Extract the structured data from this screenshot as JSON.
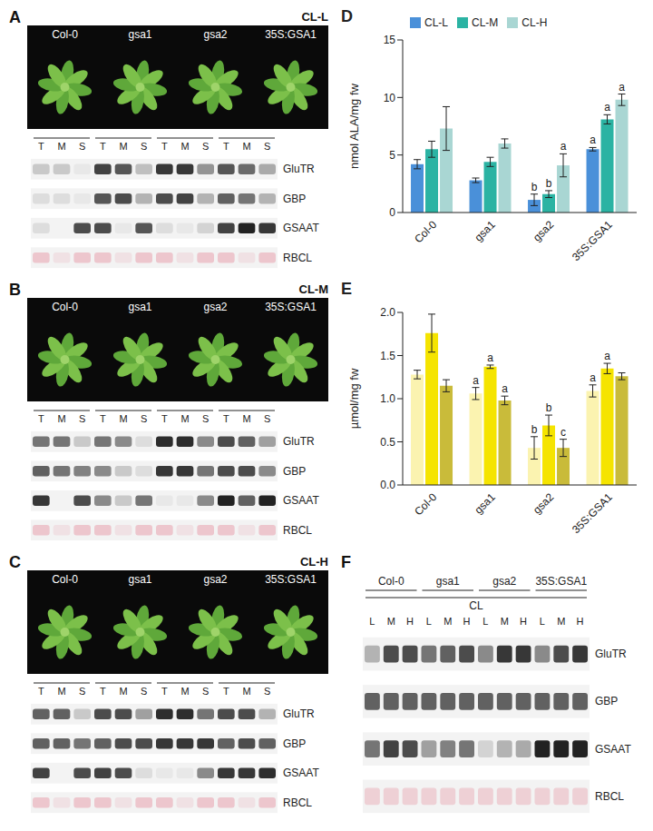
{
  "chart_data": [
    {
      "type": "bar",
      "annotations": [
        "D"
      ],
      "y_label": "nmol ALA/mg fw",
      "categories": [
        "Col-0",
        "gsa1",
        "gsa2",
        "35S:GSA1"
      ],
      "series": [
        {
          "name": "CL-L",
          "color": "#4a90d9",
          "values": [
            4.2,
            2.8,
            1.1,
            5.5
          ],
          "errors": [
            0.4,
            0.2,
            0.5,
            0.15
          ],
          "letters": [
            null,
            null,
            "b",
            "a"
          ]
        },
        {
          "name": "CL-M",
          "color": "#2bb3a3",
          "values": [
            5.5,
            4.4,
            1.6,
            8.1
          ],
          "errors": [
            0.7,
            0.4,
            0.3,
            0.4
          ],
          "letters": [
            null,
            null,
            "b",
            "a"
          ]
        },
        {
          "name": "CL-H",
          "color": "#a9d6d3",
          "values": [
            7.3,
            6.0,
            4.1,
            9.8
          ],
          "errors": [
            1.9,
            0.4,
            1.0,
            0.5
          ],
          "letters": [
            null,
            null,
            "a",
            "a"
          ]
        }
      ],
      "ylim": [
        0,
        15
      ],
      "yticks": [
        0,
        5,
        10,
        15
      ],
      "legend": "upper left"
    },
    {
      "type": "bar",
      "annotations": [
        "E"
      ],
      "y_label": "µmol/mg fw",
      "categories": [
        "Col-0",
        "gsa1",
        "gsa2",
        "35S:GSA1"
      ],
      "series": [
        {
          "name": "CL-L",
          "color": "#fbf3b0",
          "values": [
            1.28,
            1.06,
            0.43,
            1.09
          ],
          "errors": [
            0.05,
            0.07,
            0.13,
            0.07
          ],
          "letters": [
            null,
            "a",
            "b",
            "a"
          ]
        },
        {
          "name": "CL-M",
          "color": "#f5e400",
          "values": [
            1.76,
            1.37,
            0.69,
            1.35
          ],
          "errors": [
            0.22,
            0.02,
            0.12,
            0.06
          ],
          "letters": [
            null,
            "a",
            "b",
            "a"
          ]
        },
        {
          "name": "CL-H",
          "color": "#c9bb3a",
          "values": [
            1.15,
            0.98,
            0.43,
            1.26
          ],
          "errors": [
            0.07,
            0.05,
            0.1,
            0.04
          ],
          "letters": [
            null,
            "a",
            "c",
            null
          ]
        }
      ],
      "ylim": [
        0,
        2
      ],
      "yticks": [
        {
          "value": 0,
          "label": "0.0"
        },
        0.5,
        {
          "value": 1,
          "label": "1.0"
        },
        1.5,
        {
          "value": 2,
          "label": "2.0"
        }
      ]
    }
  ],
  "blots": [
    {
      "panel": "A",
      "title": "CL-L",
      "photo": true,
      "genotypes": [
        "Col-0",
        "gsa1",
        "gsa2",
        "35S:GSA1"
      ],
      "lanes": [
        "T",
        "M",
        "S"
      ],
      "rows": [
        {
          "name": "GluTR",
          "color": "#222222",
          "signal": [
            0.2,
            0.2,
            0.05,
            0.85,
            0.75,
            0.25,
            0.9,
            0.9,
            0.45,
            0.75,
            0.65,
            0.35
          ]
        },
        {
          "name": "GBP",
          "color": "#222222",
          "signal": [
            0.1,
            0.1,
            0.05,
            0.75,
            0.8,
            0.3,
            0.8,
            0.85,
            0.3,
            0.7,
            0.6,
            0.3
          ]
        },
        {
          "name": "GSAAT",
          "color": "#222222",
          "signal": [
            0.1,
            0,
            0.8,
            0.8,
            0.05,
            0.75,
            0.1,
            0.05,
            0.15,
            0.85,
            1,
            0.9
          ]
        },
        {
          "name": "RBCL",
          "color": "#e79aa8",
          "signal": [
            0.5,
            0.2,
            0.5,
            0.5,
            0.2,
            0.5,
            0.5,
            0.2,
            0.5,
            0.5,
            0.2,
            0.5
          ]
        }
      ]
    },
    {
      "panel": "B",
      "title": "CL-M",
      "photo": true,
      "genotypes": [
        "Col-0",
        "gsa1",
        "gsa2",
        "35S:GSA1"
      ],
      "lanes": [
        "T",
        "M",
        "S"
      ],
      "rows": [
        {
          "name": "GluTR",
          "color": "#222222",
          "signal": [
            0.6,
            0.6,
            0.2,
            0.6,
            0.5,
            0.1,
            0.95,
            0.95,
            0.5,
            0.8,
            0.7,
            0.4
          ]
        },
        {
          "name": "GBP",
          "color": "#222222",
          "signal": [
            0.7,
            0.6,
            0.55,
            0.5,
            0.2,
            0.1,
            0.9,
            0.9,
            0.6,
            0.8,
            0.8,
            0.5
          ]
        },
        {
          "name": "GSAAT",
          "color": "#222222",
          "signal": [
            0.9,
            0,
            0.8,
            0.5,
            0.2,
            0.6,
            0.05,
            0.05,
            0.5,
            1,
            0.7,
            1
          ]
        },
        {
          "name": "RBCL",
          "color": "#e79aa8",
          "signal": [
            0.5,
            0.2,
            0.5,
            0.5,
            0.2,
            0.5,
            0.5,
            0.2,
            0.5,
            0.5,
            0.2,
            0.5
          ]
        }
      ]
    },
    {
      "panel": "C",
      "title": "CL-H",
      "photo": true,
      "genotypes": [
        "Col-0",
        "gsa1",
        "gsa2",
        "35S:GSA1"
      ],
      "lanes": [
        "T",
        "M",
        "S"
      ],
      "rows": [
        {
          "name": "GluTR",
          "color": "#222222",
          "signal": [
            0.7,
            0.7,
            0.2,
            0.8,
            0.8,
            0.4,
            0.95,
            0.95,
            0.6,
            0.8,
            0.8,
            0.3
          ]
        },
        {
          "name": "GBP",
          "color": "#222222",
          "signal": [
            0.7,
            0.7,
            0.6,
            0.7,
            0.8,
            0.8,
            0.9,
            0.9,
            0.9,
            0.7,
            0.8,
            0.7
          ]
        },
        {
          "name": "GSAAT",
          "color": "#222222",
          "signal": [
            0.85,
            0,
            0.8,
            0.85,
            0.8,
            0.1,
            0.05,
            0.05,
            0.5,
            0.9,
            0.9,
            0.95
          ]
        },
        {
          "name": "RBCL",
          "color": "#e79aa8",
          "signal": [
            0.5,
            0.2,
            0.5,
            0.5,
            0.2,
            0.5,
            0.5,
            0.2,
            0.5,
            0.5,
            0.2,
            0.5
          ]
        }
      ]
    },
    {
      "panel": "F",
      "group_label": "CL",
      "genotypes": [
        "Col-0",
        "gsa1",
        "gsa2",
        "35S:GSA1"
      ],
      "lanes": [
        "L",
        "M",
        "H"
      ],
      "rows": [
        {
          "name": "GluTR",
          "color": "#222222",
          "signal": [
            0.3,
            0.8,
            0.8,
            0.6,
            0.7,
            0.8,
            0.5,
            0.9,
            0.9,
            0.5,
            0.8,
            0.9
          ]
        },
        {
          "name": "GBP",
          "color": "#222222",
          "signal": [
            0.7,
            0.7,
            0.7,
            0.7,
            0.7,
            0.7,
            0.7,
            0.7,
            0.7,
            0.7,
            0.7,
            0.7
          ]
        },
        {
          "name": "GSAAT",
          "color": "#222222",
          "signal": [
            0.6,
            0.85,
            0.8,
            0.4,
            0.55,
            0.6,
            0.15,
            0.3,
            0.35,
            1,
            1,
            1
          ]
        },
        {
          "name": "RBCL",
          "color": "#e79aa8",
          "signal": [
            0.4,
            0.4,
            0.4,
            0.4,
            0.4,
            0.4,
            0.4,
            0.4,
            0.4,
            0.4,
            0.4,
            0.4
          ]
        }
      ]
    }
  ]
}
